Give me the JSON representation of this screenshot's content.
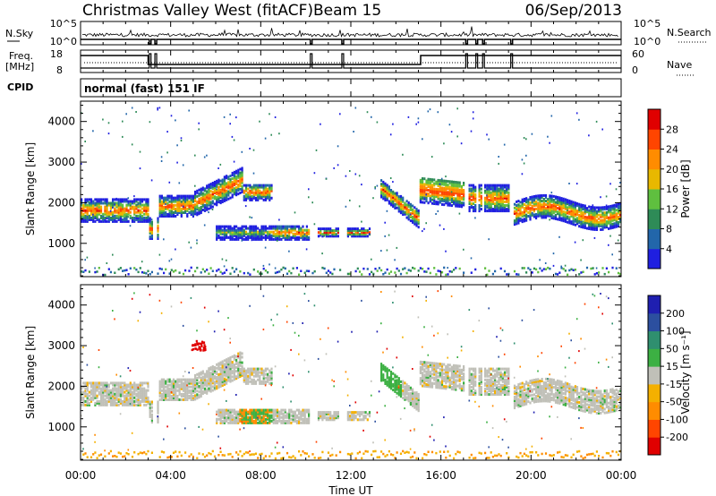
{
  "header": {
    "title": "Christmas Valley West (fitACF)",
    "beam": "Beam 15",
    "date": "06/Sep/2013"
  },
  "side_labels": {
    "nsky": "N.Sky",
    "freq": "Freq.",
    "freq_unit": "[MHz]",
    "cpid": "CPID",
    "nsearch": "N.Search",
    "nave": "Nave"
  },
  "cpid_text": "normal (fast) 151 IF",
  "noise_axis_left": [
    "10^5",
    "10^0"
  ],
  "noise_axis_right": [
    "10^5",
    "10^0"
  ],
  "freq_axis": [
    "18",
    "8"
  ],
  "nave_axis": [
    "60",
    "0"
  ],
  "x_axis": {
    "label": "Time UT",
    "ticks": [
      "00:00",
      "04:00",
      "08:00",
      "12:00",
      "16:00",
      "20:00",
      "00:00"
    ]
  },
  "colors": {
    "power": [
      "#1f1fe0",
      "#2266aa",
      "#2e8b57",
      "#5fbf3f",
      "#e8b800",
      "#ff8c00",
      "#ff4500",
      "#e00000"
    ],
    "velocity": [
      "#e00000",
      "#ff4500",
      "#ff8c00",
      "#f4b000",
      "#c0c0b8",
      "#3cb043",
      "#2f8f6f",
      "#2c4f9f",
      "#1f1fb0"
    ]
  },
  "chart_data": [
    {
      "type": "heatmap",
      "title": "Power",
      "xlabel": "",
      "ylabel": "Slant Range [km]",
      "xlim": [
        "00:00",
        "00:00"
      ],
      "ylim": [
        180,
        4500
      ],
      "yticks": [
        "1000",
        "2000",
        "3000",
        "4000"
      ],
      "colorbar": {
        "label": "Power [dB]",
        "ticks": [
          "4",
          "8",
          "12",
          "16",
          "20",
          "24",
          "28"
        ],
        "range": [
          0,
          32
        ]
      }
    },
    {
      "type": "heatmap",
      "title": "Velocity",
      "xlabel": "Time UT",
      "ylabel": "Slant Range [km]",
      "xlim": [
        "00:00",
        "00:00"
      ],
      "ylim": [
        180,
        4500
      ],
      "yticks": [
        "1000",
        "2000",
        "3000",
        "4000"
      ],
      "colorbar": {
        "label": "Velocity [m s⁻¹]",
        "ticks": [
          "200",
          "100",
          "50",
          "15",
          "-15",
          "-50",
          "-100",
          "-200"
        ]
      }
    }
  ]
}
